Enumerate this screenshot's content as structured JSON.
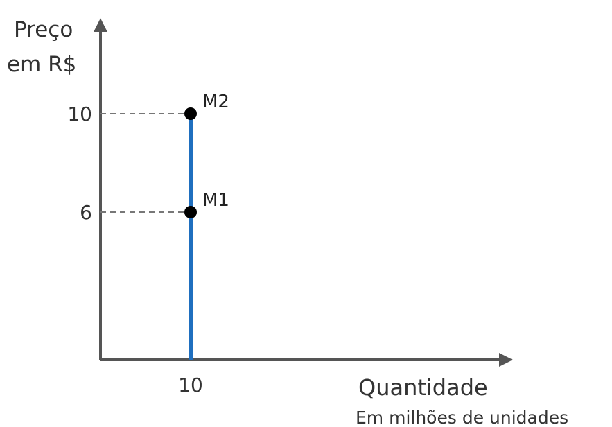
{
  "chart_data": {
    "type": "line",
    "title": "",
    "ylabel_lines": [
      "Preço",
      "em R$"
    ],
    "xlabel": "Quantidade",
    "xlabel_sub": "Em milhões de unidades",
    "x_ticks": [
      "10"
    ],
    "y_ticks": [
      "10",
      "6"
    ],
    "xlim": [
      0,
      45
    ],
    "ylim": [
      0,
      13.6
    ],
    "series": [
      {
        "x": [
          10,
          10
        ],
        "y": [
          0,
          10
        ]
      }
    ],
    "points": [
      {
        "label": "M2",
        "x": 10,
        "y": 10
      },
      {
        "label": "M1",
        "x": 10,
        "y": 6
      }
    ],
    "grid": false,
    "colors": {
      "line": "#1f6fbf",
      "axis": "#555555",
      "point": "#000000",
      "guide": "#777777"
    }
  }
}
